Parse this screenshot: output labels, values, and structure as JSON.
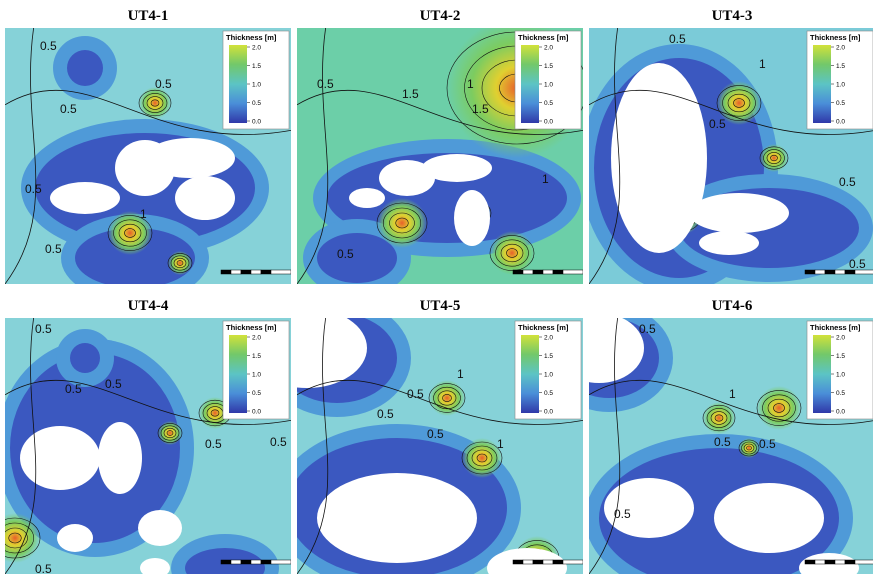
{
  "panels": [
    {
      "title": "UT4-1",
      "legend": {
        "title": "Thickness  [m]",
        "ticks": [
          "2.0",
          "1.5",
          "1.0",
          "0.5",
          "0.0"
        ]
      },
      "contour_labels": [
        "0.5",
        "0.5",
        "0.5",
        "0.5",
        "0.5",
        "1"
      ]
    },
    {
      "title": "UT4-2",
      "legend": {
        "title": "Thickness  [m]",
        "ticks": [
          "2.0",
          "1.5",
          "1.0",
          "0.5",
          "0.0"
        ]
      },
      "contour_labels": [
        "0.5",
        "1",
        "1.5",
        "1.5",
        "0.5",
        "1"
      ]
    },
    {
      "title": "UT4-3",
      "legend": {
        "title": "Thickness  [m]",
        "ticks": [
          "2.0",
          "1.5",
          "1.0",
          "0.5",
          "0.0"
        ]
      },
      "contour_labels": [
        "0.5",
        "1",
        "0.5",
        "0.5",
        "0.5"
      ]
    },
    {
      "title": "UT4-4",
      "legend": {
        "title": "Thickness  [m]",
        "ticks": [
          "2.0",
          "1.5",
          "1.0",
          "0.5",
          "0.0"
        ]
      },
      "contour_labels": [
        "0.5",
        "0.5",
        "0.5",
        "0.5",
        "0.5",
        "0.5"
      ]
    },
    {
      "title": "UT4-5",
      "legend": {
        "title": "Thickness  [m]",
        "ticks": [
          "2.0",
          "1.5",
          "1.0",
          "0.5",
          "0.0"
        ]
      },
      "contour_labels": [
        "0.5",
        "1",
        "0.5",
        "1",
        "0.5"
      ]
    },
    {
      "title": "UT4-6",
      "legend": {
        "title": "Thickness  [m]",
        "ticks": [
          "2.0",
          "1.5",
          "1.0",
          "0.5",
          "0.0"
        ]
      },
      "contour_labels": [
        "0.5",
        "1",
        "0.5",
        "0.5",
        "0.5"
      ]
    }
  ]
}
